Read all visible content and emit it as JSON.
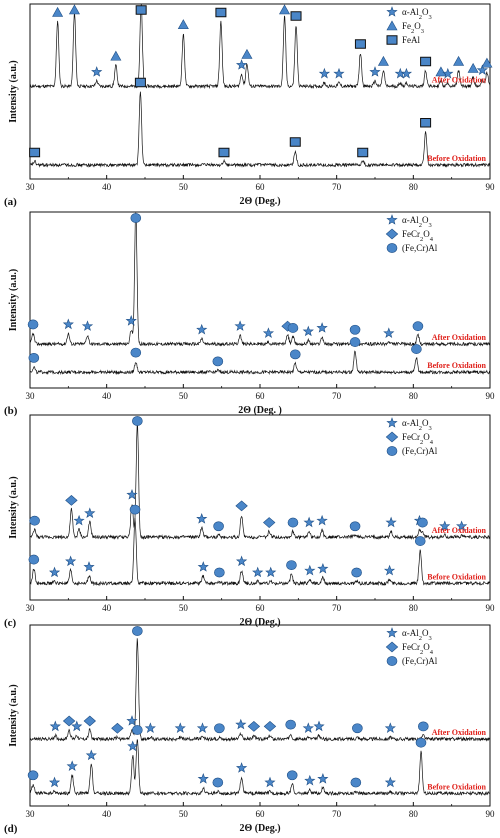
{
  "colors": {
    "marker_fill": "#4a86c8",
    "marker_stroke": "#1f4f86",
    "curve_label": "#e0211b",
    "trace": "#111111"
  },
  "chart_data": [
    {
      "type": "line",
      "panel": "(a)",
      "xlabel": "2Θ (Deg.)",
      "ylabel": "Intensity (a.u.)",
      "xlim": [
        30,
        90
      ],
      "x_ticks": [
        30,
        40,
        50,
        60,
        70,
        80,
        90
      ],
      "legend": {
        "placement": "top-right",
        "entries": [
          {
            "symbol": "star",
            "label": "α-Al2O3"
          },
          {
            "symbol": "triangle",
            "label": "Fe2O3"
          },
          {
            "symbol": "square",
            "label": "FeAl"
          }
        ]
      },
      "series": [
        {
          "name": "After Oxidation",
          "baseline": 0.53,
          "peaks": [
            {
              "x": 33.6,
              "h": 0.37,
              "m": "triangle"
            },
            {
              "x": 35.8,
              "h": 0.42,
              "m": "triangle"
            },
            {
              "x": 38.7,
              "h": 0.03,
              "m": "star"
            },
            {
              "x": 41.2,
              "h": 0.12,
              "m": "triangle"
            },
            {
              "x": 44.5,
              "h": 0.47,
              "m": "square"
            },
            {
              "x": 50.0,
              "h": 0.3,
              "m": "triangle"
            },
            {
              "x": 54.9,
              "h": 0.37,
              "m": "square"
            },
            {
              "x": 57.6,
              "h": 0.07,
              "m": "star"
            },
            {
              "x": 58.3,
              "h": 0.13,
              "m": "triangle"
            },
            {
              "x": 63.2,
              "h": 0.4,
              "m": "triangle"
            },
            {
              "x": 64.7,
              "h": 0.35,
              "m": "square"
            },
            {
              "x": 68.4,
              "h": 0.02,
              "m": "star"
            },
            {
              "x": 70.3,
              "h": 0.02,
              "m": "star"
            },
            {
              "x": 73.1,
              "h": 0.19,
              "m": "square"
            },
            {
              "x": 75.0,
              "h": 0.03,
              "m": "star"
            },
            {
              "x": 76.1,
              "h": 0.09,
              "m": "triangle"
            },
            {
              "x": 78.3,
              "h": 0.02,
              "m": "star"
            },
            {
              "x": 79.1,
              "h": 0.02,
              "m": "star"
            },
            {
              "x": 81.6,
              "h": 0.09,
              "m": "square"
            },
            {
              "x": 83.6,
              "h": 0.03,
              "m": "triangle"
            },
            {
              "x": 84.5,
              "h": 0.02,
              "m": "star"
            },
            {
              "x": 85.9,
              "h": 0.09,
              "m": "triangle"
            },
            {
              "x": 87.8,
              "h": 0.05,
              "m": "triangle"
            },
            {
              "x": 89.0,
              "h": 0.04,
              "m": "star"
            },
            {
              "x": 89.6,
              "h": 0.08,
              "m": "triangle"
            }
          ]
        },
        {
          "name": "Before Oxidation",
          "baseline": 0.08,
          "peaks": [
            {
              "x": 30.6,
              "h": 0.02,
              "m": "square"
            },
            {
              "x": 44.4,
              "h": 0.42,
              "m": "square"
            },
            {
              "x": 55.3,
              "h": 0.02,
              "m": "square"
            },
            {
              "x": 64.6,
              "h": 0.08,
              "m": "square"
            },
            {
              "x": 73.4,
              "h": 0.02,
              "m": "square"
            },
            {
              "x": 81.6,
              "h": 0.19,
              "m": "square"
            }
          ]
        }
      ]
    },
    {
      "type": "line",
      "panel": "(b)",
      "xlabel": "2Θ (Deg. )",
      "ylabel": "Intensity (a.u.)",
      "xlim": [
        30,
        90
      ],
      "x_ticks": [
        30,
        40,
        50,
        60,
        70,
        80,
        90
      ],
      "legend": {
        "placement": "top-right",
        "entries": [
          {
            "symbol": "star",
            "label": "α-Al2O3"
          },
          {
            "symbol": "diamond",
            "label": "FeCr2O4"
          },
          {
            "symbol": "circle",
            "label": "(Fe,Cr)Al"
          }
        ]
      },
      "series": [
        {
          "name": "After Oxidation",
          "baseline": 0.25,
          "peaks": [
            {
              "x": 30.4,
              "h": 0.06,
              "m": "circle"
            },
            {
              "x": 35.0,
              "h": 0.06,
              "m": "star"
            },
            {
              "x": 37.5,
              "h": 0.05,
              "m": "star"
            },
            {
              "x": 43.2,
              "h": 0.08,
              "m": "star"
            },
            {
              "x": 43.8,
              "h": 0.75,
              "m": "circle"
            },
            {
              "x": 52.4,
              "h": 0.03,
              "m": "star"
            },
            {
              "x": 57.4,
              "h": 0.05,
              "m": "star"
            },
            {
              "x": 61.1,
              "h": 0.01,
              "m": "star"
            },
            {
              "x": 63.6,
              "h": 0.05,
              "m": "diamond"
            },
            {
              "x": 64.3,
              "h": 0.04,
              "m": "circle"
            },
            {
              "x": 66.3,
              "h": 0.02,
              "m": "star"
            },
            {
              "x": 68.1,
              "h": 0.04,
              "m": "star"
            },
            {
              "x": 72.4,
              "h": 0.03,
              "m": "circle"
            },
            {
              "x": 76.8,
              "h": 0.01,
              "m": "star"
            },
            {
              "x": 80.6,
              "h": 0.05,
              "m": "circle"
            }
          ]
        },
        {
          "name": "Before Oxidation",
          "baseline": 0.09,
          "peaks": [
            {
              "x": 30.5,
              "h": 0.03,
              "m": "circle"
            },
            {
              "x": 43.8,
              "h": 0.06,
              "m": "circle"
            },
            {
              "x": 54.5,
              "h": 0.01,
              "m": "circle"
            },
            {
              "x": 64.6,
              "h": 0.05,
              "m": "circle"
            },
            {
              "x": 72.4,
              "h": 0.12,
              "m": "circle"
            },
            {
              "x": 80.4,
              "h": 0.08,
              "m": "circle"
            }
          ]
        }
      ]
    },
    {
      "type": "line",
      "panel": "(c)",
      "xlabel": "2Θ (Deg.)",
      "ylabel": "Intensity (a.u.)",
      "xlim": [
        30,
        90
      ],
      "x_ticks": [
        30,
        40,
        50,
        60,
        70,
        80,
        90
      ],
      "legend": {
        "placement": "top-right",
        "entries": [
          {
            "symbol": "star",
            "label": "α-Al2O3"
          },
          {
            "symbol": "diamond",
            "label": "FeCr2O4"
          },
          {
            "symbol": "circle",
            "label": "(Fe,Cr)Al"
          }
        ]
      },
      "series": [
        {
          "name": "After Oxidation",
          "baseline": 0.34,
          "peaks": [
            {
              "x": 30.6,
              "h": 0.04,
              "m": "circle"
            },
            {
              "x": 35.4,
              "h": 0.15,
              "m": "diamond"
            },
            {
              "x": 36.4,
              "h": 0.04,
              "m": "star"
            },
            {
              "x": 37.8,
              "h": 0.08,
              "m": "star"
            },
            {
              "x": 43.3,
              "h": 0.18,
              "m": "star"
            },
            {
              "x": 44.0,
              "h": 0.62,
              "m": "circle"
            },
            {
              "x": 52.4,
              "h": 0.05,
              "m": "star"
            },
            {
              "x": 54.6,
              "h": 0.01,
              "m": "circle"
            },
            {
              "x": 57.6,
              "h": 0.12,
              "m": "diamond"
            },
            {
              "x": 61.2,
              "h": 0.03,
              "m": "diamond"
            },
            {
              "x": 64.3,
              "h": 0.03,
              "m": "circle"
            },
            {
              "x": 66.4,
              "h": 0.03,
              "m": "star"
            },
            {
              "x": 68.1,
              "h": 0.04,
              "m": "star"
            },
            {
              "x": 72.4,
              "h": 0.01,
              "m": "circle"
            },
            {
              "x": 77.1,
              "h": 0.03,
              "m": "star"
            },
            {
              "x": 80.8,
              "h": 0.04,
              "m": "star"
            },
            {
              "x": 81.2,
              "h": 0.03,
              "m": "circle"
            },
            {
              "x": 84.1,
              "h": 0.01,
              "m": "star"
            },
            {
              "x": 86.3,
              "h": 0.01,
              "m": "star"
            }
          ]
        },
        {
          "name": "Before Oxidation",
          "baseline": 0.09,
          "peaks": [
            {
              "x": 30.5,
              "h": 0.08,
              "m": "circle"
            },
            {
              "x": 33.2,
              "h": 0.01,
              "m": "star"
            },
            {
              "x": 35.3,
              "h": 0.07,
              "m": "star"
            },
            {
              "x": 37.7,
              "h": 0.04,
              "m": "star"
            },
            {
              "x": 43.7,
              "h": 0.35,
              "m": "circle"
            },
            {
              "x": 52.6,
              "h": 0.04,
              "m": "star"
            },
            {
              "x": 54.7,
              "h": 0.01,
              "m": "circle"
            },
            {
              "x": 57.6,
              "h": 0.07,
              "m": "star"
            },
            {
              "x": 59.7,
              "h": 0.01,
              "m": "star"
            },
            {
              "x": 61.4,
              "h": 0.01,
              "m": "star"
            },
            {
              "x": 64.1,
              "h": 0.05,
              "m": "circle"
            },
            {
              "x": 66.5,
              "h": 0.02,
              "m": "star"
            },
            {
              "x": 68.2,
              "h": 0.03,
              "m": "star"
            },
            {
              "x": 72.6,
              "h": 0.01,
              "m": "circle"
            },
            {
              "x": 76.9,
              "h": 0.02,
              "m": "star"
            },
            {
              "x": 80.9,
              "h": 0.18,
              "m": "circle"
            }
          ]
        }
      ]
    },
    {
      "type": "line",
      "panel": "(d)",
      "xlabel": "2Θ (Deg.)",
      "ylabel": "Intensity (a.u.)",
      "xlim": [
        30,
        90
      ],
      "x_ticks": [
        30,
        40,
        50,
        60,
        70,
        80,
        90
      ],
      "legend": {
        "placement": "top-right",
        "entries": [
          {
            "symbol": "star",
            "label": "α-Al2O3"
          },
          {
            "symbol": "diamond",
            "label": "FeCr2O4"
          },
          {
            "symbol": "circle",
            "label": "(Fe,Cr)Al"
          }
        ]
      },
      "series": [
        {
          "name": "After Oxidation",
          "baseline": 0.37,
          "peaks": [
            {
              "x": 33.3,
              "h": 0.02,
              "m": "star"
            },
            {
              "x": 35.1,
              "h": 0.05,
              "m": "diamond"
            },
            {
              "x": 36.1,
              "h": 0.02,
              "m": "star"
            },
            {
              "x": 37.8,
              "h": 0.05,
              "m": "diamond"
            },
            {
              "x": 41.4,
              "h": 0.01,
              "m": "diamond"
            },
            {
              "x": 43.3,
              "h": 0.05,
              "m": "star"
            },
            {
              "x": 44.0,
              "h": 0.56,
              "m": "circle"
            },
            {
              "x": 45.7,
              "h": 0.01,
              "m": "star"
            },
            {
              "x": 49.6,
              "h": 0.01,
              "m": "star"
            },
            {
              "x": 52.5,
              "h": 0.01,
              "m": "star"
            },
            {
              "x": 54.7,
              "h": 0.01,
              "m": "circle"
            },
            {
              "x": 57.5,
              "h": 0.03,
              "m": "star"
            },
            {
              "x": 59.2,
              "h": 0.02,
              "m": "diamond"
            },
            {
              "x": 61.3,
              "h": 0.02,
              "m": "diamond"
            },
            {
              "x": 64.0,
              "h": 0.03,
              "m": "circle"
            },
            {
              "x": 66.3,
              "h": 0.01,
              "m": "star"
            },
            {
              "x": 67.7,
              "h": 0.02,
              "m": "star"
            },
            {
              "x": 72.7,
              "h": 0.01,
              "m": "circle"
            },
            {
              "x": 77.0,
              "h": 0.01,
              "m": "star"
            },
            {
              "x": 81.3,
              "h": 0.02,
              "m": "circle"
            }
          ]
        },
        {
          "name": "Before Oxidation",
          "baseline": 0.07,
          "peaks": [
            {
              "x": 30.4,
              "h": 0.05,
              "m": "circle"
            },
            {
              "x": 33.2,
              "h": 0.01,
              "m": "star"
            },
            {
              "x": 35.5,
              "h": 0.1,
              "m": "star"
            },
            {
              "x": 38.0,
              "h": 0.16,
              "m": "star"
            },
            {
              "x": 43.4,
              "h": 0.21,
              "m": "star"
            },
            {
              "x": 44.0,
              "h": 0.3,
              "m": "circle"
            },
            {
              "x": 52.6,
              "h": 0.03,
              "m": "star"
            },
            {
              "x": 54.5,
              "h": 0.01,
              "m": "circle"
            },
            {
              "x": 57.6,
              "h": 0.09,
              "m": "star"
            },
            {
              "x": 61.3,
              "h": 0.01,
              "m": "star"
            },
            {
              "x": 64.2,
              "h": 0.05,
              "m": "circle"
            },
            {
              "x": 66.5,
              "h": 0.02,
              "m": "star"
            },
            {
              "x": 68.2,
              "h": 0.03,
              "m": "star"
            },
            {
              "x": 72.5,
              "h": 0.01,
              "m": "circle"
            },
            {
              "x": 77.0,
              "h": 0.01,
              "m": "star"
            },
            {
              "x": 81.0,
              "h": 0.23,
              "m": "circle"
            }
          ]
        }
      ]
    }
  ]
}
